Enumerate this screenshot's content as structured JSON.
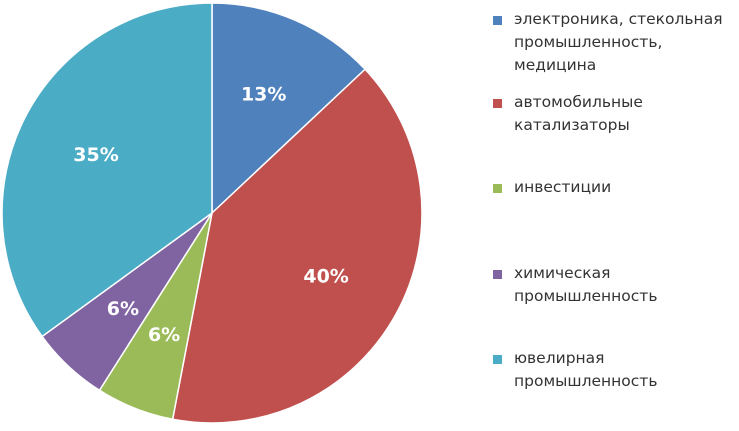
{
  "chart_data": {
    "type": "pie",
    "title": "",
    "start_angle_deg": 0,
    "direction": "clockwise",
    "slices": [
      {
        "label": "электроника, стекольная\nпромышленность,\nмедицина",
        "value": 13,
        "display": "13%",
        "color": "#4f81bd"
      },
      {
        "label": "автомобильные\nкатализаторы",
        "value": 40,
        "display": "40%",
        "color": "#c0504d"
      },
      {
        "label": "инвестиции",
        "value": 6,
        "display": "6%",
        "color": "#9bbb59"
      },
      {
        "label": "химическая\nпромышленность",
        "value": 6,
        "display": "6%",
        "color": "#8064a2"
      },
      {
        "label": "ювелирная\nпромышленность",
        "value": 35,
        "display": "35%",
        "color": "#4bacc6"
      }
    ],
    "legend_position": "right"
  }
}
